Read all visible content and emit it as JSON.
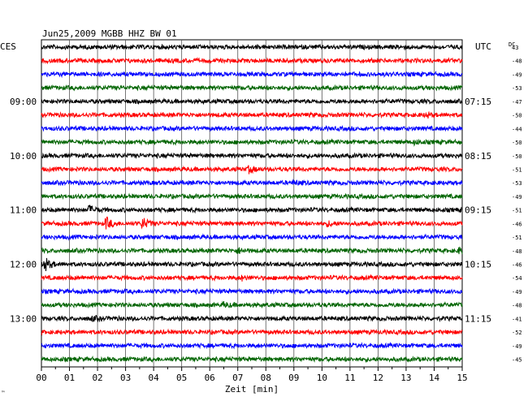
{
  "chart_data": {
    "type": "line",
    "title": "Jun25,2009   MGBB HHZ BW 01",
    "left_zone_label": "CES",
    "right_zone_label": "UTC",
    "dc_label": "DC",
    "xlabel": "Zeit [min]",
    "x_ticks": [
      "00",
      "01",
      "02",
      "03",
      "04",
      "05",
      "06",
      "07",
      "08",
      "09",
      "10",
      "11",
      "12",
      "13",
      "14",
      "15"
    ],
    "xlim": [
      0,
      15
    ],
    "grid": true,
    "trace_colors": [
      "#000000",
      "#ff0000",
      "#0000ff",
      "#006400"
    ],
    "left_time_labels": [
      {
        "row": 4,
        "label": "09:00"
      },
      {
        "row": 8,
        "label": "10:00"
      },
      {
        "row": 12,
        "label": "11:00"
      },
      {
        "row": 16,
        "label": "12:00"
      },
      {
        "row": 20,
        "label": "13:00"
      }
    ],
    "right_time_labels": [
      {
        "row": 4,
        "label": "07:15"
      },
      {
        "row": 8,
        "label": "08:15"
      },
      {
        "row": 12,
        "label": "09:15"
      },
      {
        "row": 16,
        "label": "10:15"
      },
      {
        "row": 20,
        "label": "11:15"
      }
    ],
    "dc_offsets": [
      "43",
      "-48",
      "-49",
      "-53",
      "-47",
      "-50",
      "-44",
      "-50",
      "-50",
      "-51",
      "-53",
      "-49",
      "-51",
      "-46",
      "-51",
      "-48",
      "-46",
      "-54",
      "-49",
      "-48",
      "-41",
      "-52",
      "-49",
      "-45"
    ],
    "events": [
      {
        "row": 5,
        "minute": 13.7,
        "amplitude": 1.2
      },
      {
        "row": 9,
        "minute": 7.4,
        "amplitude": 1.6
      },
      {
        "row": 10,
        "minute": 9.0,
        "amplitude": 0.9
      },
      {
        "row": 12,
        "minute": 1.7,
        "amplitude": 2.0
      },
      {
        "row": 13,
        "minute": 2.3,
        "amplitude": 3.0
      },
      {
        "row": 13,
        "minute": 3.6,
        "amplitude": 2.8
      },
      {
        "row": 13,
        "minute": 10.2,
        "amplitude": 1.0
      },
      {
        "row": 15,
        "minute": 7.0,
        "amplitude": 1.2
      },
      {
        "row": 15,
        "minute": 14.9,
        "amplitude": 1.5
      },
      {
        "row": 16,
        "minute": 0.1,
        "amplitude": 3.6
      },
      {
        "row": 17,
        "minute": 7.1,
        "amplitude": 1.0
      },
      {
        "row": 19,
        "minute": 6.5,
        "amplitude": 1.0
      },
      {
        "row": 20,
        "minute": 1.8,
        "amplitude": 1.0
      },
      {
        "row": 7,
        "minute": 13.3,
        "amplitude": 0.8
      }
    ],
    "corner_mark": "™"
  }
}
